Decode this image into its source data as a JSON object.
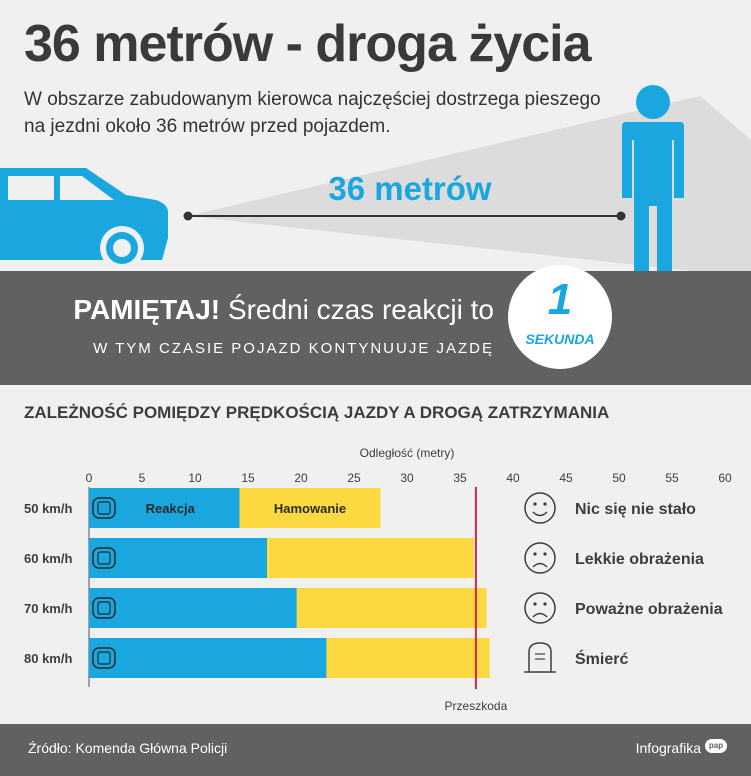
{
  "header": {
    "title": "36 metrów - droga życia",
    "subtitle": "W obszarze zabudowanym kierowca najczęściej dostrzega pieszego na jezdni około 36 metrów przed pojazdem.",
    "distance_label": "36 metrów"
  },
  "remember": {
    "bold": "PAMIĘTAJ!",
    "text": "Średni czas reakcji to",
    "subline": "W TYM CZASIE POJAZD KONTYNUUJE JAZDĘ",
    "badge_number": "1",
    "badge_unit": "SEKUNDA"
  },
  "colors": {
    "reaction": "#1aa7e0",
    "braking": "#fcd940",
    "collision_line": "#d3224f",
    "dark_band": "#616161",
    "accent": "#1aa7e0"
  },
  "chart_data": {
    "type": "bar",
    "orientation": "horizontal",
    "stacked": true,
    "title": "ZALEŻNOŚĆ POMIĘDZY PRĘDKOŚCIĄ JAZDY A DROGĄ ZATRZYMANIA",
    "xlabel": "Odległość (metry)",
    "xlim": [
      0,
      60
    ],
    "xticks": [
      "0",
      "5",
      "10",
      "15",
      "20",
      "25",
      "30",
      "35",
      "40",
      "45",
      "50",
      "55",
      "60"
    ],
    "categories": [
      "50 km/h",
      "60 km/h",
      "70 km/h",
      "80 km/h"
    ],
    "series": [
      {
        "name": "Reakcja",
        "color": "#1aa7e0",
        "values": [
          14.2,
          16.8,
          19.6,
          22.4
        ]
      },
      {
        "name": "Hamowanie",
        "color": "#fcd940",
        "values": [
          13.3,
          19.5,
          17.9,
          15.4
        ]
      }
    ],
    "reference_line": {
      "label": "Przeszkoda",
      "value": 36.5
    },
    "outcomes": [
      {
        "icon": "smile-icon",
        "label": "Nic się nie stało"
      },
      {
        "icon": "sad-icon",
        "label": "Lekkie obrażenia"
      },
      {
        "icon": "sad-icon",
        "label": "Poważne obrażenia"
      },
      {
        "icon": "tombstone-icon",
        "label": "Śmierć"
      }
    ],
    "grid": false,
    "legend": "inside-bars"
  },
  "footer": {
    "source": "Źródło: Komenda Główna Policji",
    "credit": "Infografika",
    "logo_text": "pap"
  }
}
